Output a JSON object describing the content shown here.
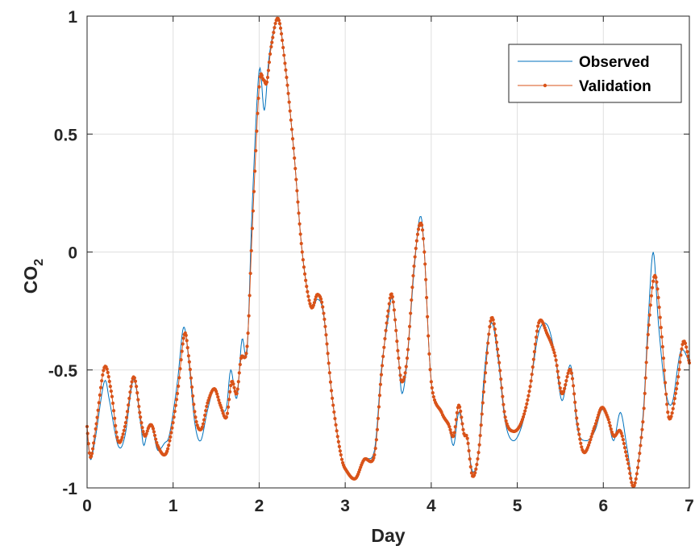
{
  "chart_data": {
    "type": "line",
    "title": "",
    "xlabel": "Day",
    "ylabel_main": "CO",
    "ylabel_sub": "2",
    "xlim": [
      0,
      7
    ],
    "ylim": [
      -1,
      1
    ],
    "xticks": [
      0,
      1,
      2,
      3,
      4,
      5,
      6,
      7
    ],
    "xtick_labels": [
      "0",
      "1",
      "2",
      "3",
      "4",
      "5",
      "6",
      "7"
    ],
    "yticks": [
      -1,
      -0.5,
      0,
      0.5,
      1
    ],
    "ytick_labels": [
      "-1",
      "-0.5",
      "0",
      "0.5",
      "1"
    ],
    "grid": true,
    "legend_position": "top-right",
    "series": [
      {
        "name": "Observed",
        "color": "#0072BD",
        "marker": "none",
        "points": [
          [
            0,
            -0.75
          ],
          [
            0.04,
            -0.88
          ],
          [
            0.1,
            -0.78
          ],
          [
            0.2,
            -0.55
          ],
          [
            0.26,
            -0.63
          ],
          [
            0.36,
            -0.82
          ],
          [
            0.44,
            -0.78
          ],
          [
            0.54,
            -0.54
          ],
          [
            0.62,
            -0.72
          ],
          [
            0.66,
            -0.82
          ],
          [
            0.72,
            -0.73
          ],
          [
            0.77,
            -0.76
          ],
          [
            0.82,
            -0.84
          ],
          [
            0.9,
            -0.81
          ],
          [
            0.96,
            -0.77
          ],
          [
            1.05,
            -0.55
          ],
          [
            1.12,
            -0.32
          ],
          [
            1.18,
            -0.45
          ],
          [
            1.25,
            -0.72
          ],
          [
            1.32,
            -0.8
          ],
          [
            1.4,
            -0.67
          ],
          [
            1.48,
            -0.58
          ],
          [
            1.56,
            -0.66
          ],
          [
            1.62,
            -0.66
          ],
          [
            1.67,
            -0.5
          ],
          [
            1.74,
            -0.62
          ],
          [
            1.8,
            -0.37
          ],
          [
            1.86,
            -0.42
          ],
          [
            1.92,
            0.2
          ],
          [
            2.0,
            0.77
          ],
          [
            2.06,
            0.6
          ],
          [
            2.12,
            0.84
          ],
          [
            2.22,
            0.99
          ],
          [
            2.3,
            0.8
          ],
          [
            2.4,
            0.44
          ],
          [
            2.5,
            0.0
          ],
          [
            2.6,
            -0.23
          ],
          [
            2.68,
            -0.2
          ],
          [
            2.75,
            -0.27
          ],
          [
            2.85,
            -0.62
          ],
          [
            2.95,
            -0.86
          ],
          [
            3.02,
            -0.93
          ],
          [
            3.12,
            -0.96
          ],
          [
            3.22,
            -0.88
          ],
          [
            3.34,
            -0.84
          ],
          [
            3.42,
            -0.5
          ],
          [
            3.5,
            -0.28
          ],
          [
            3.55,
            -0.2
          ],
          [
            3.62,
            -0.45
          ],
          [
            3.66,
            -0.6
          ],
          [
            3.72,
            -0.46
          ],
          [
            3.8,
            -0.08
          ],
          [
            3.87,
            0.15
          ],
          [
            3.92,
            0.0
          ],
          [
            4.0,
            -0.55
          ],
          [
            4.12,
            -0.68
          ],
          [
            4.2,
            -0.73
          ],
          [
            4.26,
            -0.82
          ],
          [
            4.32,
            -0.68
          ],
          [
            4.38,
            -0.77
          ],
          [
            4.42,
            -0.79
          ],
          [
            4.48,
            -0.93
          ],
          [
            4.55,
            -0.85
          ],
          [
            4.62,
            -0.5
          ],
          [
            4.7,
            -0.3
          ],
          [
            4.78,
            -0.46
          ],
          [
            4.86,
            -0.72
          ],
          [
            4.95,
            -0.8
          ],
          [
            5.05,
            -0.74
          ],
          [
            5.15,
            -0.57
          ],
          [
            5.25,
            -0.34
          ],
          [
            5.35,
            -0.31
          ],
          [
            5.44,
            -0.44
          ],
          [
            5.52,
            -0.63
          ],
          [
            5.62,
            -0.48
          ],
          [
            5.7,
            -0.75
          ],
          [
            5.8,
            -0.8
          ],
          [
            5.9,
            -0.76
          ],
          [
            5.98,
            -0.67
          ],
          [
            6.05,
            -0.7
          ],
          [
            6.12,
            -0.8
          ],
          [
            6.2,
            -0.68
          ],
          [
            6.28,
            -0.84
          ],
          [
            6.36,
            -0.99
          ],
          [
            6.46,
            -0.7
          ],
          [
            6.52,
            -0.3
          ],
          [
            6.58,
            0.0
          ],
          [
            6.64,
            -0.3
          ],
          [
            6.72,
            -0.58
          ],
          [
            6.8,
            -0.64
          ],
          [
            6.9,
            -0.42
          ],
          [
            7.0,
            -0.47
          ]
        ]
      },
      {
        "name": "Validation",
        "color": "#D95319",
        "marker": "dot",
        "points": [
          [
            0,
            -0.74
          ],
          [
            0.04,
            -0.87
          ],
          [
            0.1,
            -0.75
          ],
          [
            0.2,
            -0.49
          ],
          [
            0.28,
            -0.59
          ],
          [
            0.36,
            -0.8
          ],
          [
            0.44,
            -0.74
          ],
          [
            0.54,
            -0.53
          ],
          [
            0.62,
            -0.7
          ],
          [
            0.67,
            -0.78
          ],
          [
            0.72,
            -0.74
          ],
          [
            0.76,
            -0.74
          ],
          [
            0.82,
            -0.82
          ],
          [
            0.9,
            -0.86
          ],
          [
            0.96,
            -0.8
          ],
          [
            1.05,
            -0.6
          ],
          [
            1.13,
            -0.35
          ],
          [
            1.18,
            -0.44
          ],
          [
            1.26,
            -0.7
          ],
          [
            1.33,
            -0.75
          ],
          [
            1.4,
            -0.64
          ],
          [
            1.48,
            -0.58
          ],
          [
            1.55,
            -0.65
          ],
          [
            1.62,
            -0.7
          ],
          [
            1.68,
            -0.55
          ],
          [
            1.74,
            -0.6
          ],
          [
            1.79,
            -0.45
          ],
          [
            1.86,
            -0.4
          ],
          [
            1.92,
            0.1
          ],
          [
            2.0,
            0.7
          ],
          [
            2.05,
            0.73
          ],
          [
            2.09,
            0.72
          ],
          [
            2.14,
            0.87
          ],
          [
            2.22,
            0.99
          ],
          [
            2.3,
            0.8
          ],
          [
            2.4,
            0.44
          ],
          [
            2.5,
            0.0
          ],
          [
            2.6,
            -0.23
          ],
          [
            2.68,
            -0.18
          ],
          [
            2.75,
            -0.26
          ],
          [
            2.85,
            -0.62
          ],
          [
            2.95,
            -0.86
          ],
          [
            3.02,
            -0.93
          ],
          [
            3.12,
            -0.96
          ],
          [
            3.22,
            -0.88
          ],
          [
            3.34,
            -0.86
          ],
          [
            3.42,
            -0.52
          ],
          [
            3.5,
            -0.25
          ],
          [
            3.55,
            -0.19
          ],
          [
            3.62,
            -0.45
          ],
          [
            3.66,
            -0.55
          ],
          [
            3.72,
            -0.45
          ],
          [
            3.8,
            -0.06
          ],
          [
            3.87,
            0.12
          ],
          [
            3.92,
            0.0
          ],
          [
            4.0,
            -0.55
          ],
          [
            4.12,
            -0.68
          ],
          [
            4.2,
            -0.73
          ],
          [
            4.26,
            -0.78
          ],
          [
            4.32,
            -0.65
          ],
          [
            4.38,
            -0.77
          ],
          [
            4.42,
            -0.79
          ],
          [
            4.48,
            -0.95
          ],
          [
            4.55,
            -0.85
          ],
          [
            4.62,
            -0.55
          ],
          [
            4.7,
            -0.28
          ],
          [
            4.78,
            -0.44
          ],
          [
            4.86,
            -0.7
          ],
          [
            4.95,
            -0.76
          ],
          [
            5.05,
            -0.72
          ],
          [
            5.15,
            -0.57
          ],
          [
            5.25,
            -0.3
          ],
          [
            5.35,
            -0.35
          ],
          [
            5.44,
            -0.44
          ],
          [
            5.52,
            -0.6
          ],
          [
            5.62,
            -0.5
          ],
          [
            5.7,
            -0.73
          ],
          [
            5.78,
            -0.85
          ],
          [
            5.9,
            -0.74
          ],
          [
            5.98,
            -0.66
          ],
          [
            6.05,
            -0.7
          ],
          [
            6.12,
            -0.78
          ],
          [
            6.2,
            -0.76
          ],
          [
            6.28,
            -0.88
          ],
          [
            6.36,
            -0.99
          ],
          [
            6.46,
            -0.72
          ],
          [
            6.52,
            -0.35
          ],
          [
            6.6,
            -0.1
          ],
          [
            6.68,
            -0.36
          ],
          [
            6.76,
            -0.7
          ],
          [
            6.85,
            -0.58
          ],
          [
            6.93,
            -0.38
          ],
          [
            7.0,
            -0.47
          ]
        ]
      }
    ]
  }
}
